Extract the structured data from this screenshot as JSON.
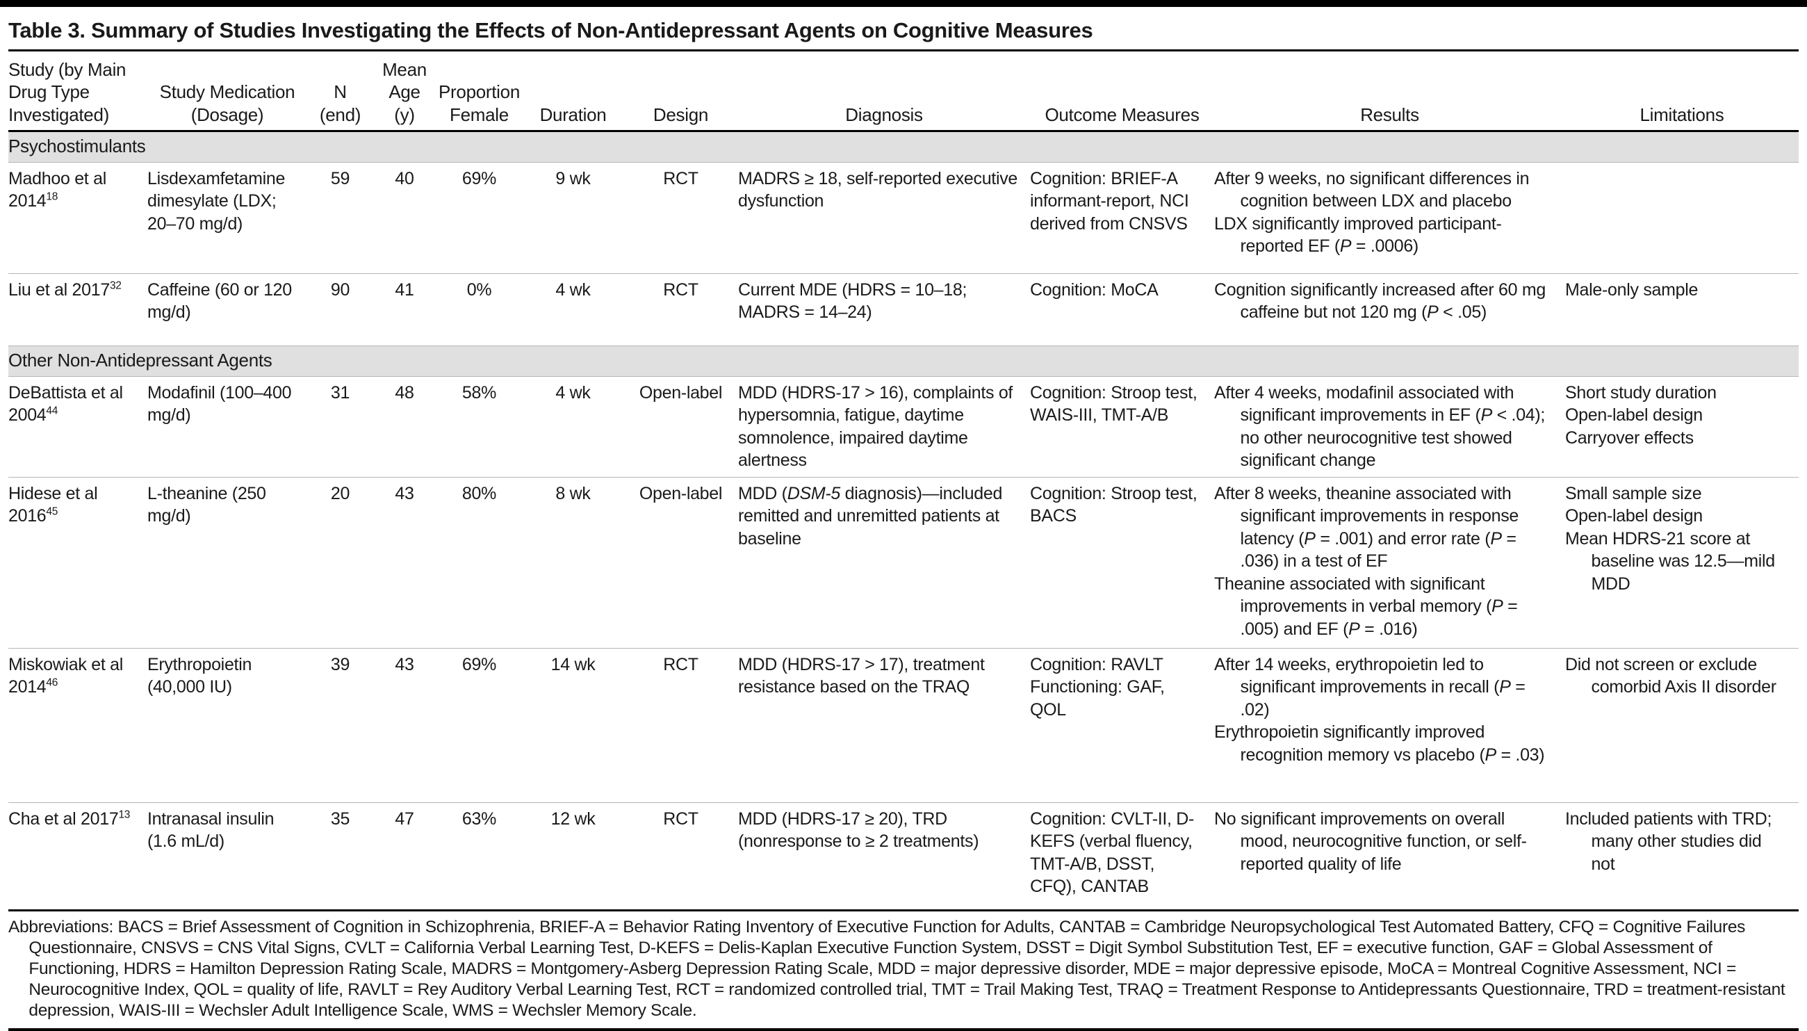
{
  "title": "Table 3. Summary of Studies Investigating the Effects of Non-Antidepressant Agents on Cognitive Measures",
  "columns": [
    "Study (by Main\nDrug Type\nInvestigated)",
    "Study Medication\n(Dosage)",
    "N\n(end)",
    "Mean\nAge\n(y)",
    "Proportion\nFemale",
    "Duration",
    "Design",
    "Diagnosis",
    "Outcome Measures",
    "Results",
    "Limitations"
  ],
  "sections": [
    {
      "label": "Psychostimulants",
      "rows": [
        {
          "study": "Madhoo et al 2014",
          "ref": "18",
          "medication": "Lisdexamfetamine dimesylate (LDX; 20–70 mg/d)",
          "n": "59",
          "age": "40",
          "female": "69%",
          "duration": "9 wk",
          "design": "RCT",
          "diagnosis": "MADRS ≥ 18, self-reported executive dysfunction",
          "outcomes": [
            "Cognition: BRIEF-A informant-report, NCI derived from CNSVS"
          ],
          "results": [
            "After 9 weeks, no significant differences in cognition between LDX and placebo",
            "LDX significantly improved participant-reported EF (P = .0006)"
          ],
          "limitations": []
        },
        {
          "study": "Liu et al 2017",
          "ref": "32",
          "medication": "Caffeine (60 or 120 mg/d)",
          "n": "90",
          "age": "41",
          "female": "0%",
          "duration": "4 wk",
          "design": "RCT",
          "diagnosis": "Current MDE (HDRS = 10–18; MADRS = 14–24)",
          "outcomes": [
            "Cognition: MoCA"
          ],
          "results": [
            "Cognition significantly increased after 60 mg caffeine but not 120 mg (P < .05)"
          ],
          "limitations": [
            "Male-only sample"
          ]
        }
      ]
    },
    {
      "label": "Other Non-Antidepressant Agents",
      "rows": [
        {
          "study": "DeBattista et al 2004",
          "ref": "44",
          "medication": "Modafinil (100–400 mg/d)",
          "n": "31",
          "age": "48",
          "female": "58%",
          "duration": "4 wk",
          "design": "Open-label",
          "diagnosis": "MDD (HDRS-17 > 16), complaints of hypersomnia, fatigue, daytime somnolence, impaired daytime alertness",
          "outcomes": [
            "Cognition: Stroop test, WAIS-III, TMT-A/B"
          ],
          "results": [
            "After 4 weeks, modafinil associated with significant improvements in EF (P < .04); no other neurocognitive test showed significant change"
          ],
          "limitations": [
            "Short study duration",
            "Open-label design",
            "Carryover effects"
          ]
        },
        {
          "study": "Hidese et al 2016",
          "ref": "45",
          "medication": "L-theanine (250 mg/d)",
          "n": "20",
          "age": "43",
          "female": "80%",
          "duration": "8 wk",
          "design": "Open-label",
          "diagnosis": "MDD (DSM-5 diagnosis)—included remitted and unremitted patients at baseline",
          "outcomes": [
            "Cognition: Stroop test, BACS"
          ],
          "results": [
            "After 8 weeks, theanine associated with significant improvements in response latency (P = .001) and error rate (P = .036) in a test of EF",
            "Theanine associated with significant improvements in verbal memory (P = .005) and EF (P = .016)"
          ],
          "limitations": [
            "Small sample size",
            "Open-label design",
            "Mean HDRS-21 score at baseline was 12.5—mild MDD"
          ]
        },
        {
          "study": "Miskowiak et al 2014",
          "ref": "46",
          "medication": "Erythropoietin (40,000 IU)",
          "n": "39",
          "age": "43",
          "female": "69%",
          "duration": "14 wk",
          "design": "RCT",
          "diagnosis": "MDD (HDRS-17 > 17), treatment resistance based on the TRAQ",
          "outcomes": [
            "Cognition: RAVLT",
            "Functioning: GAF, QOL"
          ],
          "results": [
            "After 14 weeks, erythropoietin led to significant improvements in recall (P = .02)",
            "Erythropoietin significantly improved recognition memory vs placebo (P = .03)"
          ],
          "limitations": [
            "Did not screen or exclude comorbid Axis II disorder"
          ]
        },
        {
          "study": "Cha et al 2017",
          "ref": "13",
          "medication": "Intranasal insulin (1.6 mL/d)",
          "n": "35",
          "age": "47",
          "female": "63%",
          "duration": "12 wk",
          "design": "RCT",
          "diagnosis": "MDD (HDRS-17 ≥ 20), TRD (nonresponse to ≥ 2 treatments)",
          "outcomes": [
            "Cognition: CVLT-II, D-KEFS (verbal fluency, TMT-A/B, DSST, CFQ), CANTAB"
          ],
          "results": [
            "No significant improvements on overall mood, neurocognitive function, or self-reported quality of life"
          ],
          "limitations": [
            "Included patients with TRD; many other studies did not"
          ]
        }
      ]
    }
  ],
  "footnote": "Abbreviations: BACS = Brief Assessment of Cognition in Schizophrenia, BRIEF-A = Behavior Rating Inventory of Executive Function for Adults, CANTAB = Cambridge Neuropsychological Test Automated Battery, CFQ = Cognitive Failures Questionnaire, CNSVS = CNS Vital Signs, CVLT = California Verbal Learning Test, D-KEFS = Delis-Kaplan Executive Function System, DSST = Digit Symbol Substitution Test, EF = executive function, GAF = Global Assessment of Functioning, HDRS = Hamilton Depression Rating Scale, MADRS = Montgomery-Asberg Depression Rating Scale, MDD = major depressive disorder, MDE = major depressive episode, MoCA = Montreal Cognitive Assessment, NCI = Neurocognitive Index, QOL = quality of life, RAVLT = Rey Auditory Verbal Learning Test, RCT = randomized controlled trial, TMT = Trail Making Test, TRAQ = Treatment Response to Antidepressants Questionnaire, TRD = treatment-resistant depression, WAIS-III = Wechsler Adult Intelligence Scale, WMS = Wechsler Memory Scale."
}
